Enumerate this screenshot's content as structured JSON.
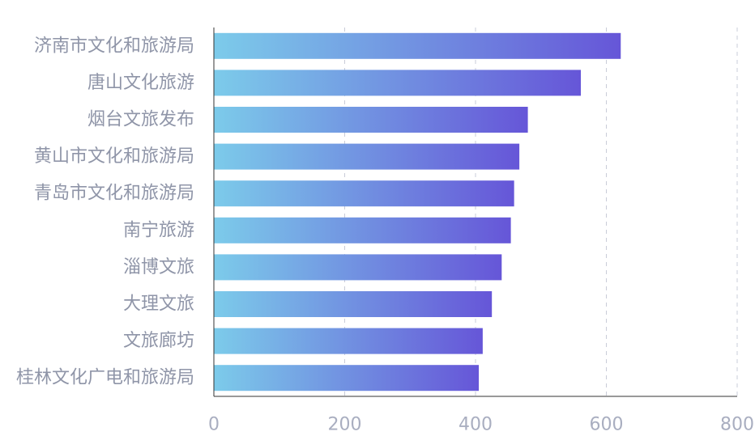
{
  "chart_data": {
    "type": "bar",
    "orientation": "horizontal",
    "categories": [
      "济南市文化和旅游局",
      "唐山文化旅游",
      "烟台文旅发布",
      "黄山市文化和旅游局",
      "青岛市文化和旅游局",
      "南宁旅游",
      "淄博文旅",
      "大理文旅",
      "文旅廊坊",
      "桂林文化广电和旅游局"
    ],
    "values": [
      622,
      561,
      480,
      467,
      459,
      454,
      440,
      425,
      411,
      405
    ],
    "xlim": [
      0,
      800
    ],
    "xticks": [
      0,
      200,
      400,
      600,
      800
    ],
    "xtick_labels": [
      "0",
      "200",
      "400",
      "600",
      "800"
    ],
    "title": "",
    "xlabel": "",
    "ylabel": "",
    "grid": "vertical dashed",
    "legend": "none",
    "colors": {
      "bar_gradient_start": "#7ccbea",
      "bar_gradient_end": "#6656d8",
      "grid": "#c9ccd8",
      "axis": "#333333",
      "category_text": "#8f95a8",
      "tick_text": "#a9aec0"
    }
  }
}
